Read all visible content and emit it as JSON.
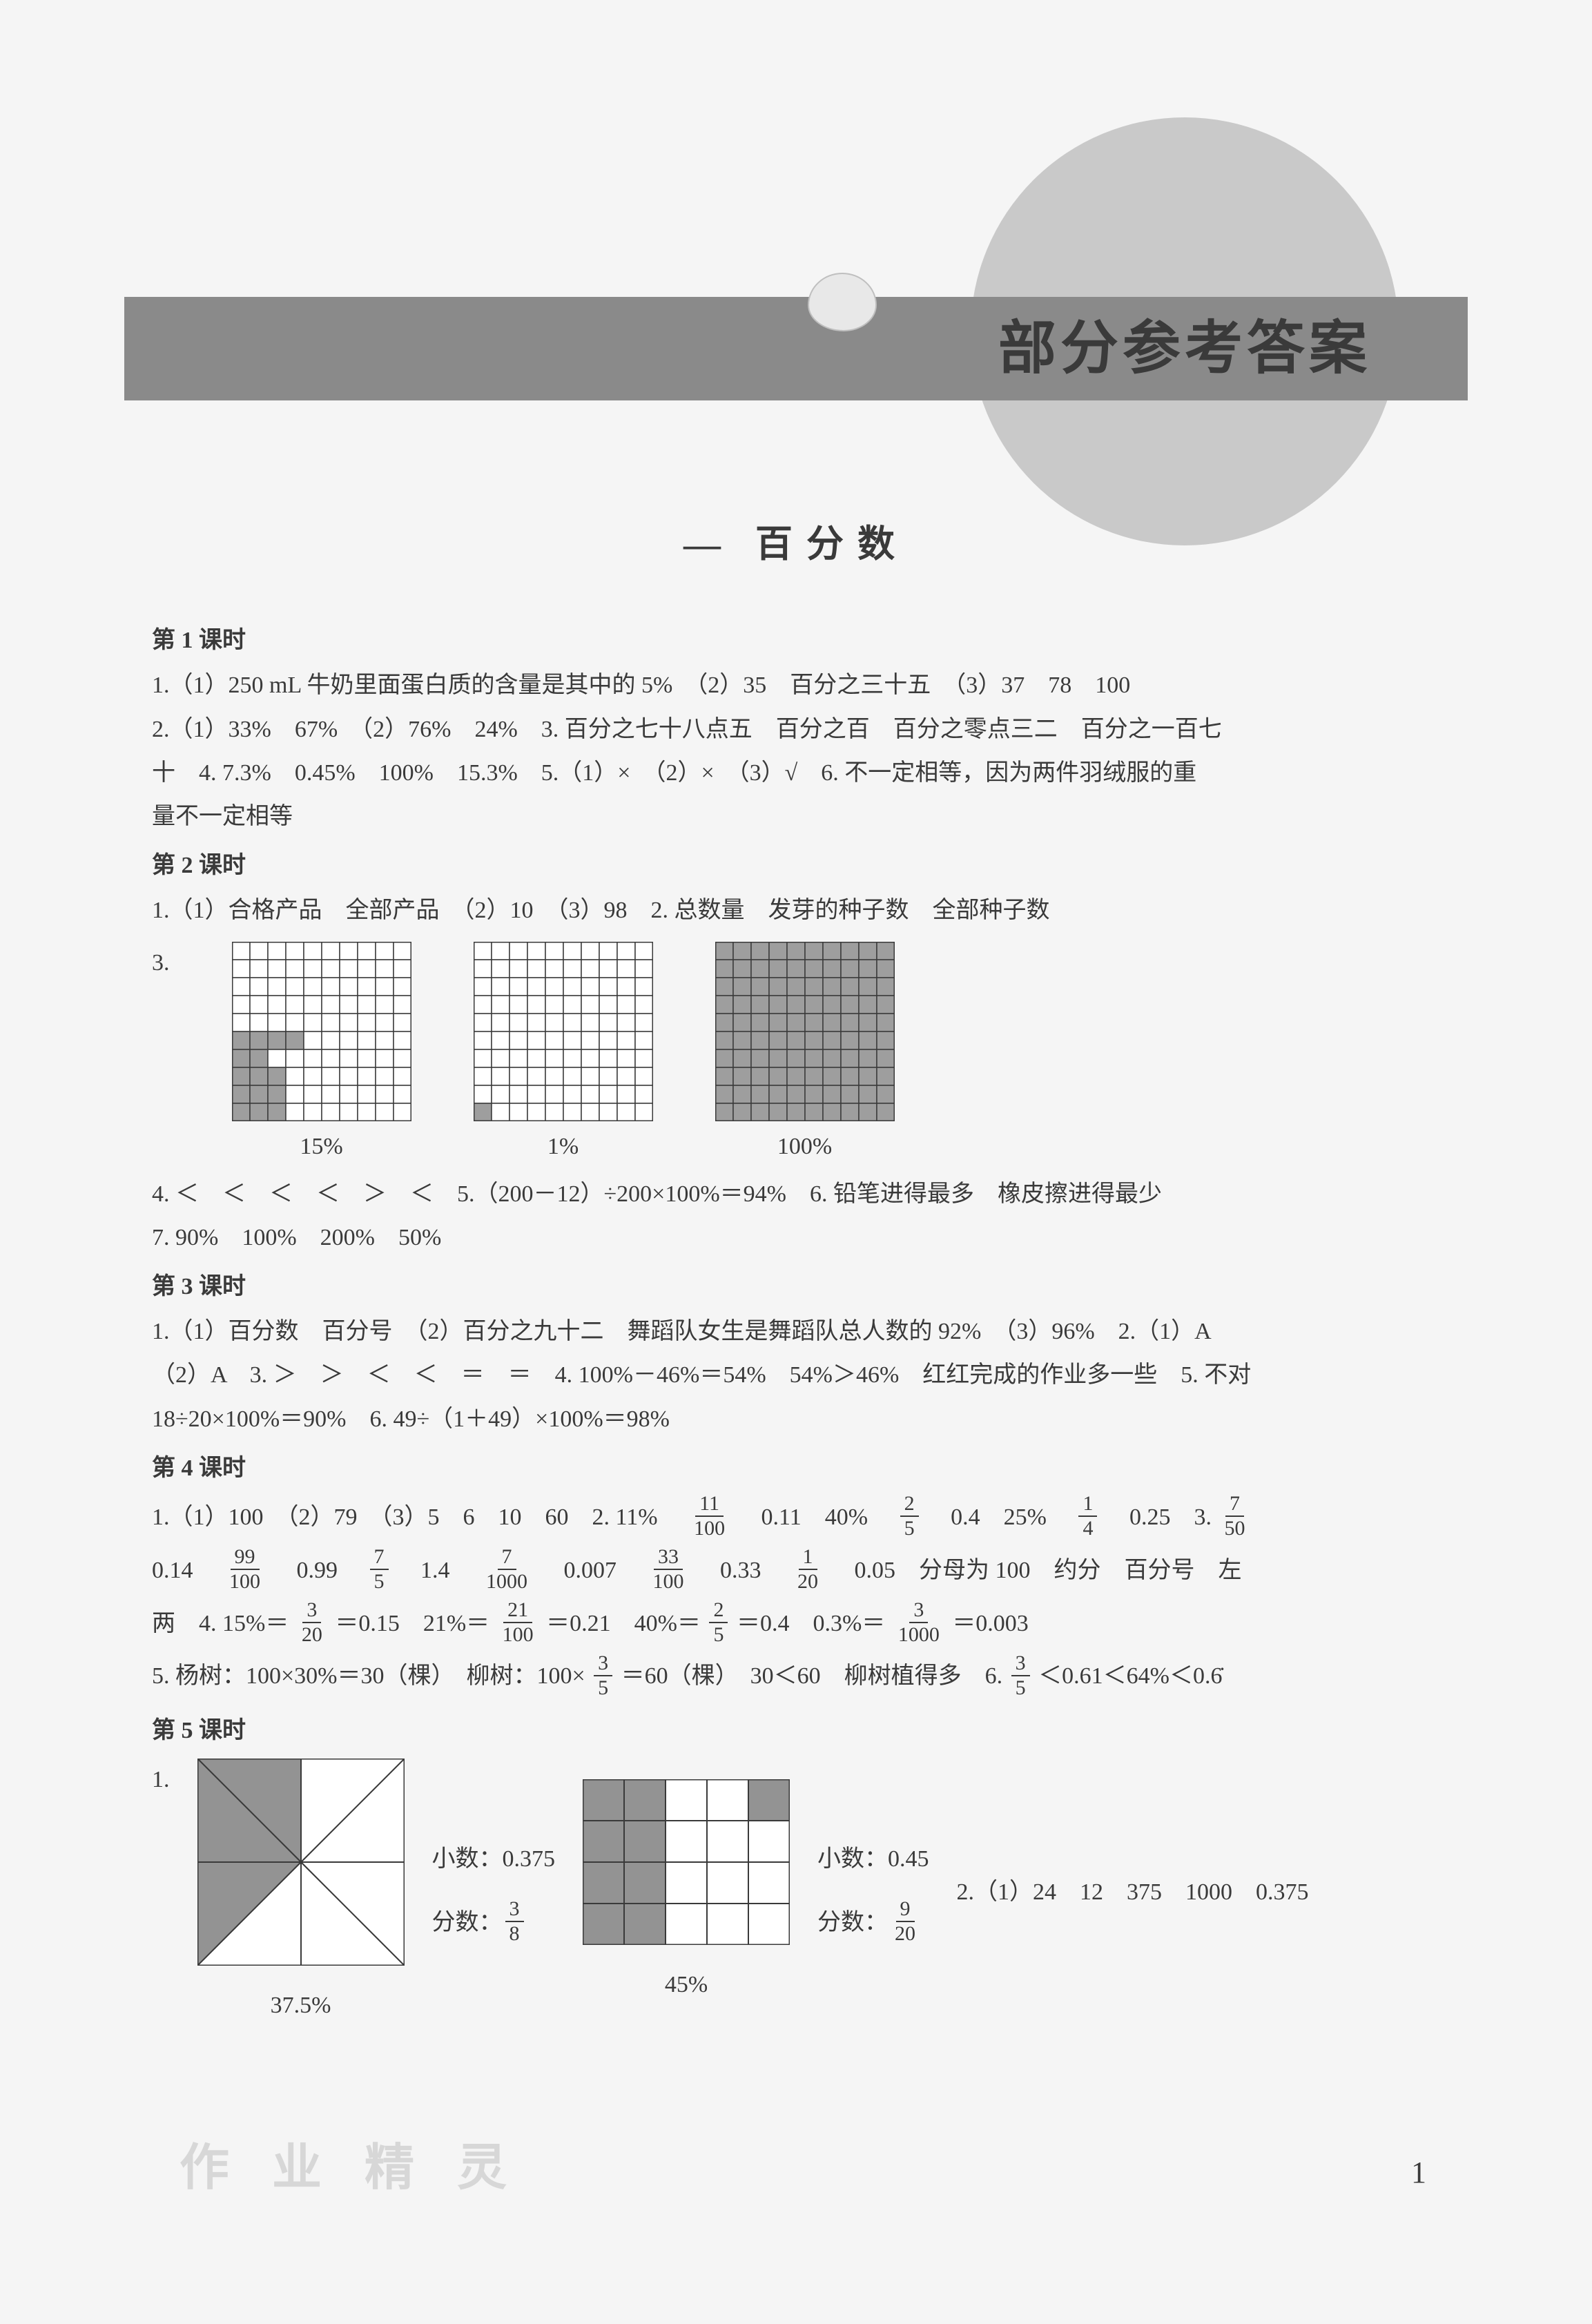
{
  "header": {
    "title": "部分参考答案"
  },
  "main_heading": {
    "prefix": "—",
    "text": "百分数"
  },
  "page_number": "1",
  "watermark": "作 业 精 灵",
  "lesson1": {
    "title": "第 1 课时",
    "l1": "1.（1）250 mL 牛奶里面蛋白质的含量是其中的 5%　（2）35　百分之三十五　（3）37　78　100",
    "l2": "2.（1）33%　67%　（2）76%　24%　3. 百分之七十八点五　百分之百　百分之零点三二　百分之一百七",
    "l3": "十　4. 7.3%　0.45%　100%　15.3%　5.（1）×　（2）×　（3）√　6. 不一定相等，因为两件羽绒服的重",
    "l4": "量不一定相等"
  },
  "lesson2": {
    "title": "第 2 课时",
    "l1": "1.（1）合格产品　全部产品　（2）10　（3）98　2. 总数量　发芽的种子数　全部种子数",
    "q3label": "3.",
    "grids": {
      "size": 10,
      "cell_bg": "#ffffff",
      "cell_fill": "#9e9e9e",
      "border": "#3a3a3a",
      "g1_label": "15%",
      "g1_cells": [
        [
          5,
          0
        ],
        [
          6,
          0
        ],
        [
          7,
          0
        ],
        [
          8,
          0
        ],
        [
          9,
          0
        ],
        [
          5,
          1
        ],
        [
          6,
          1
        ],
        [
          7,
          1
        ],
        [
          8,
          1
        ],
        [
          9,
          1
        ],
        [
          5,
          2
        ],
        [
          7,
          2
        ],
        [
          8,
          2
        ],
        [
          9,
          2
        ],
        [
          5,
          3
        ]
      ],
      "g2_label": "1%",
      "g2_cells": [
        [
          9,
          0
        ]
      ],
      "g3_label": "100%",
      "g3_full": true
    },
    "l4": "4. ＜　＜　＜　＜　＞　＜　5.（200－12）÷200×100%＝94%　6. 铅笔进得最多　橡皮擦进得最少",
    "l5": "7. 90%　100%　200%　50%"
  },
  "lesson3": {
    "title": "第 3 课时",
    "l1": "1.（1）百分数　百分号　（2）百分之九十二　舞蹈队女生是舞蹈队总人数的 92%　（3）96%　2.（1）A",
    "l2": "（2）A　3. ＞　＞　＜　＜　＝　＝　4. 100%－46%＝54%　54%＞46%　红红完成的作业多一些　5. 不对",
    "l3": "18÷20×100%＝90%　6. 49÷（1＋49）×100%＝98%"
  },
  "lesson4": {
    "title": "第 4 课时",
    "row1": {
      "a": "1.（1）100　（2）79　（3）5　6　10　60　2. 11%　",
      "f1n": "11",
      "f1d": "100",
      "b": "　0.11　40%　",
      "f2n": "2",
      "f2d": "5",
      "c": "　0.4　25%　",
      "f3n": "1",
      "f3d": "4",
      "d": "　0.25　3. ",
      "f4n": "7",
      "f4d": "50"
    },
    "row2": {
      "a": "0.14　",
      "f1n": "99",
      "f1d": "100",
      "b": "　0.99　",
      "f2n": "7",
      "f2d": "5",
      "c": "　1.4　",
      "f3n": "7",
      "f3d": "1000",
      "d": "　0.007　",
      "f4n": "33",
      "f4d": "100",
      "e": "　0.33　",
      "f5n": "1",
      "f5d": "20",
      "f": "　0.05　分母为 100　约分　百分号　左"
    },
    "row3": {
      "a": "两　4. 15%＝",
      "f1n": "3",
      "f1d": "20",
      "b": "＝0.15　21%＝",
      "f2n": "21",
      "f2d": "100",
      "c": "＝0.21　40%＝",
      "f3n": "2",
      "f3d": "5",
      "d": "＝0.4　0.3%＝",
      "f4n": "3",
      "f4d": "1000",
      "e": "＝0.003"
    },
    "row4": {
      "a": "5. 杨树：100×30%＝30（棵）　柳树：100×",
      "f1n": "3",
      "f1d": "5",
      "b": "＝60（棵）　30＜60　柳树植得多　6. ",
      "f2n": "3",
      "f2d": "5",
      "c": "＜0.61＜64%＜0.6̇"
    }
  },
  "lesson5": {
    "title": "第 5 课时",
    "q1label": "1.",
    "fig1": {
      "fill": "#939393",
      "stroke": "#3a3a3a",
      "caption": "37.5%",
      "side_dec_label": "小数：",
      "side_dec_val": "0.375",
      "side_frac_label": "分数：",
      "side_frac_n": "3",
      "side_frac_d": "8"
    },
    "fig2": {
      "fill": "#939393",
      "stroke": "#3a3a3a",
      "bg": "#ffffff",
      "caption": "45%",
      "side_dec_label": "小数：",
      "side_dec_val": "0.45",
      "side_frac_label": "分数：",
      "side_frac_n": "9",
      "side_frac_d": "20",
      "shaded": [
        [
          0,
          0
        ],
        [
          0,
          1
        ],
        [
          0,
          4
        ],
        [
          1,
          0
        ],
        [
          1,
          1
        ],
        [
          2,
          0
        ],
        [
          2,
          1
        ],
        [
          3,
          0
        ],
        [
          3,
          1
        ]
      ]
    },
    "right_text": "2.（1）24　12　375　1000　0.375"
  }
}
